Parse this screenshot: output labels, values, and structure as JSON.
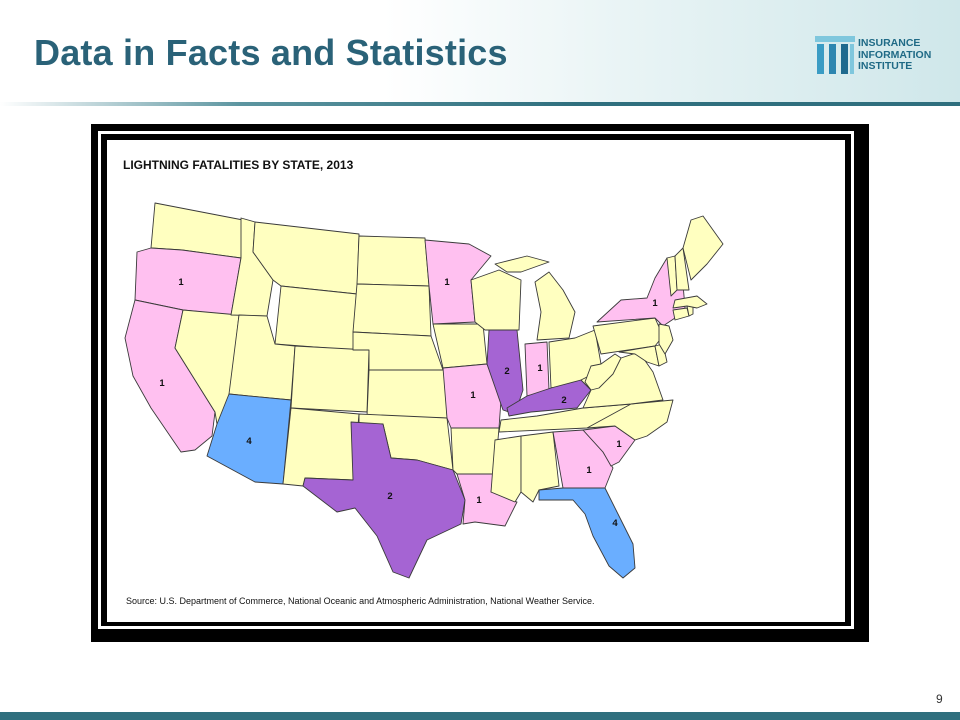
{
  "slide": {
    "title": "Data in Facts and Statistics",
    "page_number": "9"
  },
  "logo": {
    "line1": "INSURANCE",
    "line2": "INFORMATION",
    "line3": "INSTITUTE"
  },
  "map": {
    "title": "LIGHTNING FATALITIES BY STATE, 2013",
    "source": "Source: U.S. Department of Commerce, National Oceanic and Atmospheric Administration, National Weather Service.",
    "color_scale": {
      "0": "#ffffc0",
      "1": "#ffc0f0",
      "2": "#a564d3",
      "4": "#6aaeff"
    },
    "border_color": "#3a3a3a",
    "states": [
      {
        "state": "Oregon",
        "value": 1
      },
      {
        "state": "California",
        "value": 1
      },
      {
        "state": "Arizona",
        "value": 4
      },
      {
        "state": "Texas",
        "value": 2
      },
      {
        "state": "Minnesota",
        "value": 1
      },
      {
        "state": "Missouri",
        "value": 1
      },
      {
        "state": "Louisiana",
        "value": 1
      },
      {
        "state": "Illinois",
        "value": 2
      },
      {
        "state": "Indiana",
        "value": 1
      },
      {
        "state": "Kentucky",
        "value": 2
      },
      {
        "state": "Georgia",
        "value": 1
      },
      {
        "state": "South Carolina",
        "value": 1
      },
      {
        "state": "Florida",
        "value": 4
      },
      {
        "state": "New York",
        "value": 1
      }
    ]
  }
}
